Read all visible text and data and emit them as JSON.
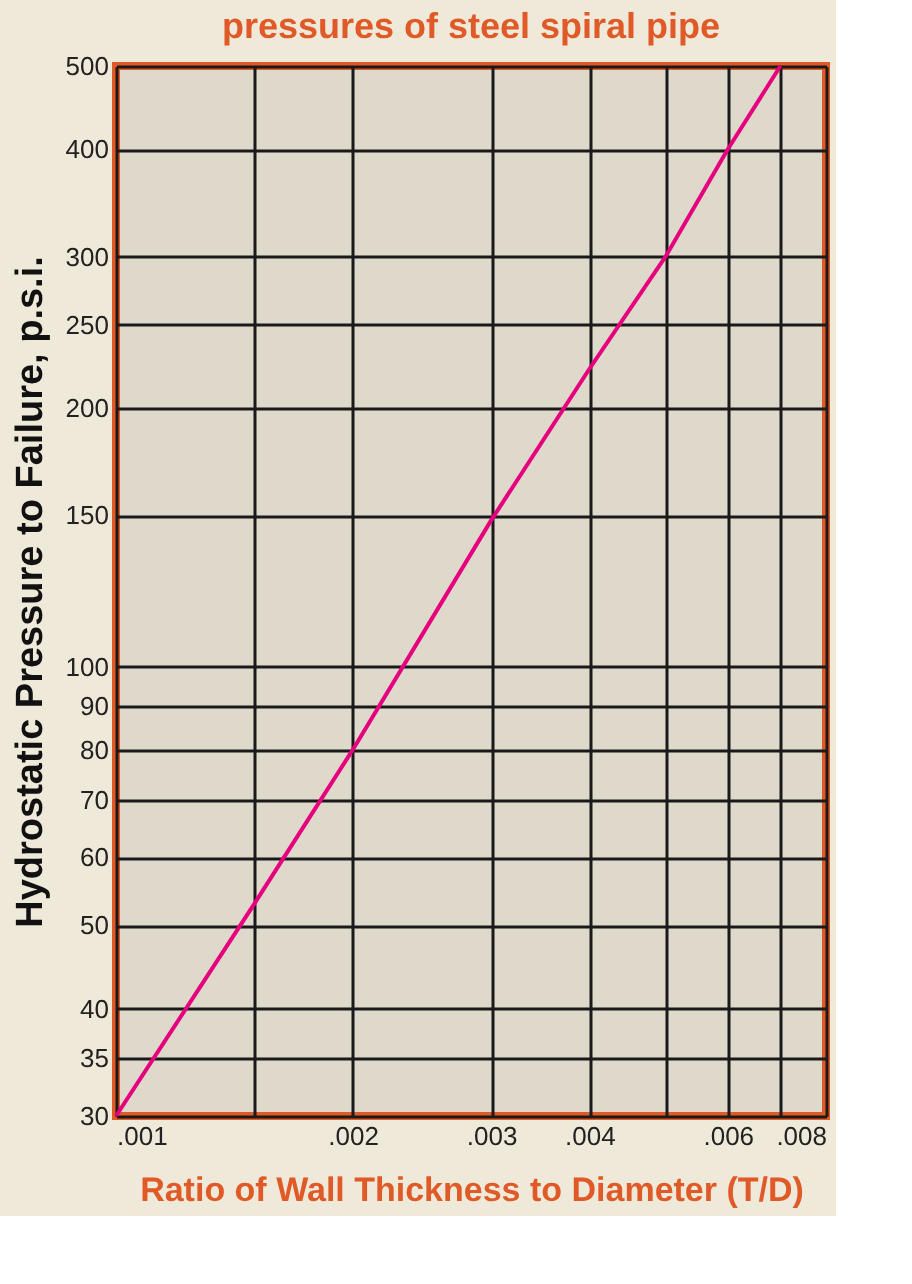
{
  "chart_data": {
    "type": "line",
    "title": "pressures of steel spiral pipe",
    "xlabel": "Ratio of Wall Thickness to Diameter (T/D)",
    "ylabel": "Hydrostatic Pressure to Failure, p.s.i.",
    "x": [
      0.001,
      0.0015,
      0.002,
      0.003,
      0.004,
      0.005,
      0.006,
      0.007
    ],
    "series": [
      {
        "color": "#e6007e",
        "values": [
          30,
          53,
          80,
          148,
          222,
          300,
          400,
          500
        ]
      }
    ],
    "log": "xy",
    "xlim": [
      0.001,
      0.008
    ],
    "ylim": [
      30,
      500
    ],
    "xticks": [
      {
        "value": 0.001,
        "label": ".001"
      },
      {
        "value": 0.0015,
        "label": null
      },
      {
        "value": 0.002,
        "label": ".002"
      },
      {
        "value": 0.003,
        "label": ".003"
      },
      {
        "value": 0.004,
        "label": ".004"
      },
      {
        "value": 0.005,
        "label": null
      },
      {
        "value": 0.006,
        "label": ".006"
      },
      {
        "value": 0.007,
        "label": null
      },
      {
        "value": 0.008,
        "label": ".008"
      }
    ],
    "yticks": [
      30,
      35,
      40,
      50,
      60,
      70,
      80,
      90,
      100,
      150,
      200,
      250,
      300,
      400,
      500
    ],
    "grid": true,
    "legend": false,
    "marker": "none",
    "line_style": "solid"
  }
}
